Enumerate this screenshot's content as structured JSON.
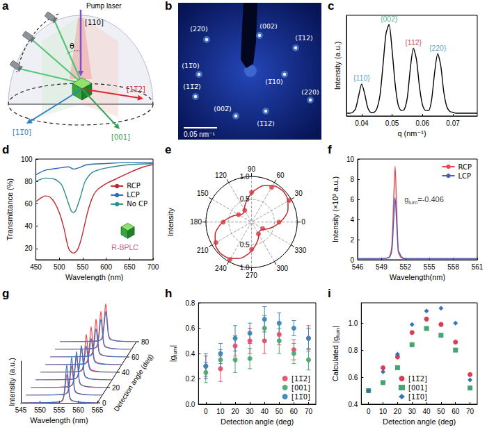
{
  "figure": {
    "diagram": {
      "panel": "a",
      "pump_label": "Pump laser",
      "pump_axis": "[110]",
      "angle": "θ",
      "directions": [
        {
          "label": "[11̅2]",
          "color": "#e3262b"
        },
        {
          "label": "[11̅0]",
          "color": "#2f7fc1"
        },
        {
          "label": "[001]",
          "color": "#2ea34f"
        }
      ]
    },
    "diffraction": {
      "panel": "b",
      "spots": [
        "(22̅0)",
        "(002)",
        "(1̅12)",
        "(11̅0)",
        "(11̅2̅)",
        "(1̅10)",
        "(220)",
        "(002̅)",
        "(1̅12̅)"
      ],
      "scale_bar": "0.05 nm⁻¹"
    }
  },
  "chart_data": [
    {
      "panel": "c",
      "type": "line",
      "xlabel": "q (nm⁻¹)",
      "ylabel": "Intensity (a.u.)",
      "xlim": [
        0.035,
        0.078
      ],
      "xticks": [
        0.04,
        0.05,
        0.06,
        0.07
      ],
      "ylim": [
        0,
        1.1
      ],
      "yticks": [],
      "tick_labels": "x",
      "series": [
        {
          "color": "#000000",
          "x": [
            0.035,
            0.036,
            0.037,
            0.038,
            0.039,
            0.04,
            0.041,
            0.042,
            0.043,
            0.044,
            0.045,
            0.046,
            0.047,
            0.048,
            0.049,
            0.05,
            0.051,
            0.052,
            0.053,
            0.054,
            0.055,
            0.056,
            0.057,
            0.058,
            0.059,
            0.06,
            0.061,
            0.062,
            0.063,
            0.064,
            0.065,
            0.066,
            0.067,
            0.068,
            0.069,
            0.07,
            0.071,
            0.072,
            0.073,
            0.074,
            0.075,
            0.076,
            0.077,
            0.078
          ],
          "values": [
            0.03,
            0.03,
            0.04,
            0.08,
            0.22,
            0.35,
            0.24,
            0.09,
            0.04,
            0.04,
            0.08,
            0.22,
            0.55,
            0.9,
            1.0,
            0.72,
            0.35,
            0.12,
            0.06,
            0.07,
            0.2,
            0.52,
            0.74,
            0.62,
            0.32,
            0.12,
            0.06,
            0.06,
            0.18,
            0.48,
            0.68,
            0.55,
            0.26,
            0.1,
            0.05,
            0.04,
            0.03,
            0.03,
            0.03,
            0.03,
            0.03,
            0.03,
            0.03,
            0.03
          ]
        }
      ],
      "annotations": [
        {
          "text": "{110}",
          "x": 0.04,
          "y": 0.35,
          "color": "#2f8fae"
        },
        {
          "text": "{002}",
          "x": 0.049,
          "y": 1.0,
          "color": "#2a9d7a"
        },
        {
          "text": "{112}",
          "x": 0.057,
          "y": 0.74,
          "color": "#c0282d"
        },
        {
          "text": "{220}",
          "x": 0.065,
          "y": 0.68,
          "color": "#2f8fae"
        }
      ]
    },
    {
      "panel": "d",
      "type": "line",
      "xlabel": "Wavelength (nm)",
      "ylabel": "Transmittance (%)",
      "xlim": [
        450,
        700
      ],
      "xticks": [
        450,
        500,
        550,
        600,
        650,
        700
      ],
      "ylim": [
        10,
        100
      ],
      "yticks": [
        20,
        40,
        60,
        80,
        100
      ],
      "legend": "center right",
      "series": [
        {
          "name": "RCP",
          "color": "#c0282d",
          "x": [
            450,
            460,
            470,
            480,
            490,
            500,
            510,
            515,
            520,
            525,
            530,
            535,
            540,
            545,
            550,
            560,
            570,
            580,
            600,
            620,
            650,
            680,
            700
          ],
          "values": [
            62,
            65,
            67,
            66,
            61,
            52,
            38,
            28,
            20,
            17,
            16,
            17,
            20,
            26,
            34,
            52,
            65,
            72,
            78,
            82,
            88,
            93,
            95
          ]
        },
        {
          "name": "LCP",
          "color": "#2b6cb0",
          "x": [
            450,
            470,
            500,
            520,
            530,
            540,
            560,
            600,
            650,
            700
          ],
          "values": [
            86,
            90,
            92,
            93,
            91,
            92,
            95,
            96,
            97,
            97
          ]
        },
        {
          "name": "No CP",
          "color": "#2e8b8b",
          "x": [
            450,
            470,
            490,
            505,
            515,
            525,
            530,
            535,
            545,
            555,
            570,
            600,
            650,
            700
          ],
          "values": [
            80,
            83,
            82,
            77,
            66,
            54,
            52,
            54,
            66,
            80,
            88,
            92,
            95,
            96
          ]
        }
      ],
      "annotations": [
        {
          "text": "R-BPLC",
          "x": 640,
          "y": 16,
          "color": "#b8306a",
          "marker": "cube"
        }
      ]
    },
    {
      "panel": "e",
      "type": "polar",
      "ylabel": "Intensity",
      "thetalim": [
        0,
        360
      ],
      "angle_ticks": [
        0,
        30,
        60,
        90,
        120,
        150,
        180,
        210,
        240,
        270,
        300,
        330
      ],
      "rlim": [
        0,
        1
      ],
      "rticks": [
        {
          "value": 0.5,
          "label": "0.5"
        },
        {
          "value": 1,
          "label": "1.0"
        }
      ],
      "grid": true,
      "series": [
        {
          "type": "line",
          "color": "#c0282d",
          "theta": [
            0,
            10,
            20,
            30,
            40,
            50,
            60,
            70,
            80,
            90,
            100,
            110,
            120,
            130,
            140,
            150,
            160,
            170,
            180,
            190,
            200,
            210,
            220,
            230,
            240,
            250,
            260,
            270,
            280,
            290,
            300,
            310,
            320,
            330,
            340,
            350,
            360
          ],
          "values": [
            0.63,
            0.75,
            0.85,
            0.92,
            0.96,
            0.96,
            0.92,
            0.85,
            0.75,
            0.63,
            0.51,
            0.41,
            0.32,
            0.27,
            0.27,
            0.32,
            0.41,
            0.51,
            0.63,
            0.75,
            0.85,
            0.92,
            0.96,
            0.96,
            0.92,
            0.85,
            0.75,
            0.63,
            0.51,
            0.41,
            0.32,
            0.27,
            0.27,
            0.32,
            0.41,
            0.51,
            0.63
          ]
        },
        {
          "type": "scatter",
          "color": "#d23a44",
          "theta": [
            0,
            30,
            60,
            90,
            120,
            150,
            180,
            210,
            240,
            270,
            300,
            330
          ],
          "values": [
            0.6,
            0.95,
            0.88,
            0.65,
            0.3,
            0.33,
            0.62,
            0.9,
            0.95,
            0.6,
            0.3,
            0.28
          ]
        }
      ]
    },
    {
      "panel": "f",
      "type": "line",
      "xlabel": "Wavelength(nm)",
      "ylabel": "Intensity (×10³ a.u.)",
      "xlim": [
        546,
        561
      ],
      "xticks": [
        546,
        549,
        552,
        555,
        558,
        561
      ],
      "ylim": [
        0,
        10
      ],
      "yticks": [
        0,
        2,
        4,
        6,
        8,
        10
      ],
      "legend": "upper right",
      "series": [
        {
          "name": "RCP",
          "color": "#e8474f",
          "x": [
            546,
            548,
            549.5,
            550,
            550.3,
            550.5,
            550.7,
            550.9,
            551.1,
            551.3,
            551.5,
            552,
            555,
            558,
            561
          ],
          "values": [
            0.1,
            0.1,
            0.15,
            0.3,
            1.5,
            5.5,
            9.3,
            5.0,
            0.8,
            0.4,
            0.2,
            0.1,
            0.1,
            0.1,
            0.1
          ]
        },
        {
          "name": "LCP",
          "color": "#4c5db8",
          "x": [
            546,
            548,
            549.5,
            550,
            550.3,
            550.5,
            550.7,
            550.9,
            551.1,
            551.3,
            551.5,
            552,
            555,
            558,
            561
          ],
          "values": [
            0.1,
            0.1,
            0.15,
            0.25,
            1.0,
            3.6,
            6.2,
            3.5,
            0.9,
            0.6,
            0.3,
            0.1,
            0.1,
            0.1,
            0.1
          ]
        }
      ],
      "annotations": [
        {
          "parts": [
            {
              "text": "g"
            },
            {
              "text": "lum",
              "sub": true
            },
            {
              "text": "=-0.406"
            }
          ],
          "x": 551.6,
          "y": 6,
          "color": "#000000"
        }
      ]
    },
    {
      "panel": "g",
      "type": "waterfall",
      "xlabel": "Wavelength (nm)",
      "ylabel": "Intensity (a.u.)",
      "zlabel": "Detection angle (deg)",
      "xlim": [
        545,
        565
      ],
      "xticks": [
        545,
        550,
        555,
        560,
        565
      ],
      "ylim": [
        0,
        1.1
      ],
      "yticks": [],
      "zlim": [
        0,
        80
      ],
      "zticks": [
        0,
        20,
        40,
        60,
        80
      ],
      "angles": [
        0,
        10,
        20,
        30,
        40,
        50,
        60,
        70,
        80
      ],
      "x": [
        545,
        555,
        556,
        556.5,
        557,
        557.5,
        558,
        560,
        565
      ],
      "series": [
        {
          "color": "#e8474f",
          "values": [
            [
              0,
              0.02,
              0.08,
              0.34,
              0.75,
              0.34,
              0.08,
              0.02,
              0
            ],
            [
              0,
              0.02,
              0.08,
              0.35,
              0.78,
              0.35,
              0.08,
              0.02,
              0
            ],
            [
              0,
              0.02,
              0.09,
              0.38,
              0.85,
              0.38,
              0.09,
              0.02,
              0
            ],
            [
              0,
              0.02,
              0.09,
              0.41,
              0.9,
              0.41,
              0.09,
              0.02,
              0
            ],
            [
              0,
              0.02,
              0.1,
              0.45,
              1.0,
              0.45,
              0.1,
              0.02,
              0
            ],
            [
              0,
              0.02,
              0.1,
              0.45,
              1.0,
              0.45,
              0.1,
              0.02,
              0
            ],
            [
              0,
              0.02,
              0.1,
              0.45,
              1.0,
              0.45,
              0.1,
              0.02,
              0
            ],
            [
              0,
              0.02,
              0.1,
              0.45,
              1.0,
              0.45,
              0.1,
              0.02,
              0
            ],
            [
              0,
              0.02,
              0.1,
              0.45,
              1.0,
              0.45,
              0.1,
              0.02,
              0
            ]
          ]
        },
        {
          "color": "#3d6fc0",
          "values": [
            [
              0,
              0.02,
              0.1,
              0.45,
              1.0,
              0.45,
              0.1,
              0.02,
              0
            ],
            [
              0,
              0.02,
              0.1,
              0.45,
              1.0,
              0.45,
              0.1,
              0.02,
              0
            ],
            [
              0,
              0.02,
              0.1,
              0.43,
              0.95,
              0.43,
              0.1,
              0.02,
              0
            ],
            [
              0,
              0.02,
              0.09,
              0.41,
              0.9,
              0.41,
              0.09,
              0.02,
              0
            ],
            [
              0,
              0.01,
              0.07,
              0.32,
              0.7,
              0.32,
              0.07,
              0.01,
              0
            ],
            [
              0,
              0.01,
              0.07,
              0.32,
              0.7,
              0.32,
              0.07,
              0.01,
              0
            ],
            [
              0,
              0.02,
              0.08,
              0.34,
              0.75,
              0.34,
              0.08,
              0.02,
              0
            ],
            [
              0,
              0.02,
              0.08,
              0.36,
              0.8,
              0.36,
              0.08,
              0.02,
              0
            ],
            [
              0,
              0.02,
              0.08,
              0.36,
              0.8,
              0.36,
              0.08,
              0.02,
              0
            ]
          ]
        }
      ]
    },
    {
      "panel": "h",
      "type": "scatter",
      "xlabel": "Detection angle (deg)",
      "ylabel": [
        {
          "text": "|g"
        },
        {
          "text": "lum",
          "sub": true
        },
        {
          "text": "|"
        }
      ],
      "xlim": [
        -5,
        75
      ],
      "xticks": [
        0,
        10,
        20,
        30,
        40,
        50,
        60,
        70
      ],
      "ylim": [
        0,
        0.8
      ],
      "yticks": [
        {
          "value": 0,
          "label": "0.0"
        },
        0.2,
        0.4,
        0.6,
        0.8
      ],
      "legend": "lower right",
      "series": [
        {
          "name": "[11̅2]",
          "color": "#e4506a",
          "marker": "circle",
          "x": [
            0,
            10,
            20,
            30,
            40,
            50,
            60,
            70
          ],
          "values": [
            0.3,
            0.28,
            0.46,
            0.5,
            0.5,
            0.55,
            0.43,
            0.52
          ],
          "errors": [
            0.08,
            0.1,
            0.08,
            0.1,
            0.1,
            0.08,
            0.08,
            0.1
          ]
        },
        {
          "name": "[001]",
          "color": "#4fa874",
          "marker": "circle",
          "x": [
            0,
            10,
            20,
            30,
            40,
            50,
            60,
            70
          ],
          "values": [
            0.25,
            0.35,
            0.35,
            0.36,
            0.6,
            0.5,
            0.4,
            0.35
          ],
          "errors": [
            0.08,
            0.08,
            0.1,
            0.08,
            0.1,
            0.1,
            0.08,
            0.08
          ]
        },
        {
          "name": "[11̅0]",
          "color": "#3d85b8",
          "marker": "circle",
          "x": [
            0,
            10,
            20,
            30,
            40,
            50,
            60,
            70
          ],
          "values": [
            0.3,
            0.4,
            0.52,
            0.56,
            0.67,
            0.64,
            0.6,
            0.52
          ],
          "errors": [
            0.1,
            0.08,
            0.1,
            0.08,
            0.1,
            0.08,
            0.06,
            0.08
          ]
        }
      ]
    },
    {
      "panel": "i",
      "type": "scatter",
      "xlabel": "Detection angle (deg)",
      "ylabel": [
        {
          "text": "Calculated |g"
        },
        {
          "text": "lum",
          "sub": true
        },
        {
          "text": "|"
        }
      ],
      "xlim": [
        -5,
        75
      ],
      "xticks": [
        0,
        10,
        20,
        30,
        40,
        50,
        60,
        70
      ],
      "ylim": [
        0.4,
        1.15
      ],
      "yticks": [
        0.4,
        0.6,
        0.8,
        {
          "value": 1,
          "label": "1.0"
        }
      ],
      "legend": "lower center",
      "series": [
        {
          "name": "[11̅2]",
          "color": "#d9344a",
          "marker": "circle",
          "x": [
            0,
            10,
            20,
            30,
            40,
            50,
            60,
            70
          ],
          "values": [
            0.5,
            0.67,
            0.75,
            0.93,
            1.03,
            0.99,
            0.86,
            0.62
          ]
        },
        {
          "name": "[001]",
          "color": "#3aa06a",
          "marker": "square",
          "x": [
            0,
            10,
            20,
            30,
            40,
            50,
            60,
            70
          ],
          "values": [
            0.5,
            0.56,
            0.67,
            0.84,
            0.96,
            0.91,
            0.8,
            0.52
          ]
        },
        {
          "name": "[11̅0]",
          "color": "#2f6fb0",
          "marker": "diamond",
          "x": [
            0,
            10,
            20,
            30,
            40,
            50,
            60,
            70
          ],
          "values": [
            0.5,
            0.64,
            0.77,
            0.99,
            1.09,
            1.11,
            1.0,
            0.58
          ]
        }
      ]
    }
  ]
}
